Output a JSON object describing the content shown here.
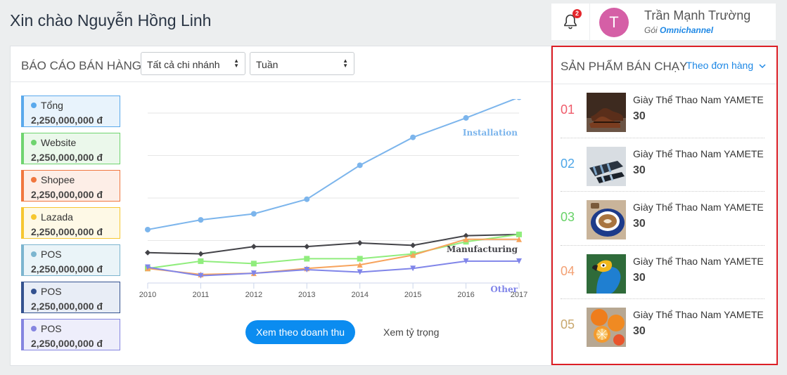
{
  "header": {
    "greeting": "Xin chào Nguyễn Hồng Linh",
    "notification_count": "2",
    "user": {
      "avatar_letter": "T",
      "name": "Trần Mạnh Trường",
      "plan_prefix": "Gói",
      "plan_name": "Omnichannel"
    }
  },
  "report": {
    "title": "BÁO CÁO BÁN HÀNG",
    "branch_select": "Tất cả chi nhánh",
    "period_select": "Tuần",
    "legend": [
      {
        "name": "Tổng",
        "value": "2,250,000,000 đ",
        "color": "#5aa9ec",
        "bg": "#e8f3fc"
      },
      {
        "name": "Website",
        "value": "2,250,000,000 đ",
        "color": "#6fd46f",
        "bg": "#ebf8eb"
      },
      {
        "name": "Shopee",
        "value": "2,250,000,000 đ",
        "color": "#f0773f",
        "bg": "#fdeee7"
      },
      {
        "name": "Lazada",
        "value": "2,250,000,000 đ",
        "color": "#f6c731",
        "bg": "#fef9e6"
      },
      {
        "name": "POS",
        "value": "2,250,000,000 đ",
        "color": "#7cb5cf",
        "bg": "#eaf4f8"
      },
      {
        "name": "POS",
        "value": "2,250,000,000 đ",
        "color": "#34528f",
        "bg": "#e8edf6"
      },
      {
        "name": "POS",
        "value": "2,250,000,000 đ",
        "color": "#8585e0",
        "bg": "#eeeefb"
      }
    ],
    "buttons": {
      "revenue": "Xem theo doanh thu",
      "ratio": "Xem tỷ trọng"
    }
  },
  "chart_data": {
    "type": "line",
    "x": [
      2010,
      2011,
      2012,
      2013,
      2014,
      2015,
      2016,
      2017
    ],
    "ylim": [
      0,
      14
    ],
    "grid": true,
    "series": [
      {
        "name": "Installation",
        "color": "#7cb5ec",
        "marker": "circle",
        "values": [
          4.4,
          5.2,
          5.7,
          6.9,
          9.7,
          12.0,
          13.6,
          15.3
        ]
      },
      {
        "name": "Manufacturing",
        "color": "#434348",
        "marker": "diamond",
        "values": [
          2.5,
          2.4,
          3.0,
          3.0,
          3.3,
          3.1,
          3.9,
          4.0
        ]
      },
      {
        "values": [
          1.2,
          1.8,
          1.6,
          2.0,
          2.0,
          2.4,
          3.4,
          4.0
        ],
        "color": "#90ed7d",
        "marker": "square"
      },
      {
        "values": [
          1.2,
          0.7,
          0.8,
          1.2,
          1.5,
          2.3,
          3.6,
          3.6
        ],
        "color": "#f7a35c",
        "marker": "triangle"
      },
      {
        "name": "Other",
        "color": "#8085e9",
        "marker": "triangle-down",
        "values": [
          1.3,
          0.6,
          0.8,
          1.1,
          0.9,
          1.2,
          1.8,
          1.8
        ]
      }
    ]
  },
  "best_sellers": {
    "title": "SẢN PHẨM BÁN CHẠY",
    "sort_label": "Theo đơn hàng",
    "items": [
      {
        "rank": "01",
        "name": "Giày Thể Thao Nam YAMETE",
        "qty": "30",
        "rank_color": "#ef5b6a",
        "image": "shoes"
      },
      {
        "rank": "02",
        "name": "Giày Thể Thao Nam YAMETE",
        "qty": "30",
        "rank_color": "#4fa7e8",
        "image": "sandals"
      },
      {
        "rank": "03",
        "name": "Giày Thể Thao Nam YAMETE",
        "qty": "30",
        "rank_color": "#68d268",
        "image": "coffee"
      },
      {
        "rank": "04",
        "name": "Giày Thể Thao Nam YAMETE",
        "qty": "30",
        "rank_color": "#f3a174",
        "image": "parrot"
      },
      {
        "rank": "05",
        "name": "Giày Thể Thao Nam YAMETE",
        "qty": "30",
        "rank_color": "#c9a86e",
        "image": "oranges"
      }
    ]
  }
}
